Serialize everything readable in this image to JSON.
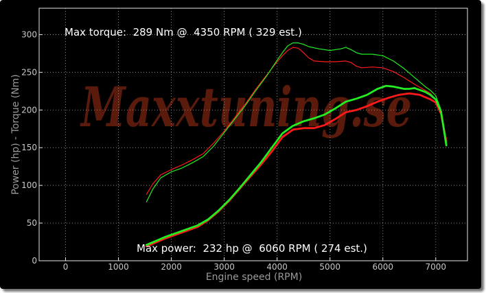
{
  "chart_data": {
    "type": "line",
    "title": "",
    "xlabel": "Engine speed (RPM)",
    "ylabel": "Power (hp) - Torque (Nm)",
    "xlim": [
      -500,
      7600
    ],
    "ylim": [
      0,
      335
    ],
    "x_ticks": [
      "0",
      "1000",
      "2000",
      "3000",
      "4000",
      "5000",
      "6000",
      "7000"
    ],
    "y_ticks": [
      "0",
      "50",
      "100",
      "150",
      "200",
      "250",
      "300"
    ],
    "grid": true,
    "annotations": {
      "max_torque": "Max torque:  289 Nm @  4350 RPM ( 329 est.)",
      "max_power": "Max power:  232 hp @  6060 RPM ( 274 est.)"
    },
    "watermark": "Maxxtuning.se",
    "colors": {
      "red": "#ff1a1a",
      "green": "#22ee22",
      "text": "#ffffff",
      "axis_title": "#9a9a9a"
    },
    "series": [
      {
        "kind": "torque",
        "color": "red",
        "width": 1.2,
        "points": [
          [
            1530,
            88
          ],
          [
            1650,
            102
          ],
          [
            1800,
            114
          ],
          [
            2000,
            121
          ],
          [
            2200,
            127
          ],
          [
            2400,
            134
          ],
          [
            2600,
            142
          ],
          [
            2800,
            156
          ],
          [
            3000,
            172
          ],
          [
            3200,
            190
          ],
          [
            3400,
            208
          ],
          [
            3600,
            228
          ],
          [
            3800,
            246
          ],
          [
            4000,
            264
          ],
          [
            4100,
            272
          ],
          [
            4200,
            279
          ],
          [
            4300,
            283
          ],
          [
            4400,
            282
          ],
          [
            4500,
            276
          ],
          [
            4600,
            269
          ],
          [
            4700,
            265
          ],
          [
            4900,
            264
          ],
          [
            5100,
            264
          ],
          [
            5300,
            265
          ],
          [
            5400,
            263
          ],
          [
            5500,
            258
          ],
          [
            5600,
            256
          ],
          [
            5800,
            257
          ],
          [
            6000,
            256
          ],
          [
            6200,
            251
          ],
          [
            6400,
            243
          ],
          [
            6600,
            234
          ],
          [
            6800,
            226
          ],
          [
            6900,
            222
          ],
          [
            7000,
            214
          ],
          [
            7100,
            195
          ],
          [
            7200,
            158
          ]
        ]
      },
      {
        "kind": "torque",
        "color": "green",
        "width": 1.2,
        "points": [
          [
            1530,
            78
          ],
          [
            1650,
            95
          ],
          [
            1800,
            110
          ],
          [
            2000,
            118
          ],
          [
            2200,
            123
          ],
          [
            2400,
            130
          ],
          [
            2600,
            138
          ],
          [
            2800,
            152
          ],
          [
            3000,
            170
          ],
          [
            3200,
            188
          ],
          [
            3400,
            206
          ],
          [
            3600,
            226
          ],
          [
            3800,
            245
          ],
          [
            4000,
            266
          ],
          [
            4100,
            276
          ],
          [
            4200,
            285
          ],
          [
            4300,
            289
          ],
          [
            4400,
            289
          ],
          [
            4500,
            287
          ],
          [
            4600,
            284
          ],
          [
            4800,
            281
          ],
          [
            5000,
            279
          ],
          [
            5200,
            281
          ],
          [
            5300,
            283
          ],
          [
            5400,
            280
          ],
          [
            5500,
            276
          ],
          [
            5600,
            274
          ],
          [
            5800,
            274
          ],
          [
            6000,
            272
          ],
          [
            6200,
            265
          ],
          [
            6400,
            255
          ],
          [
            6600,
            243
          ],
          [
            6800,
            231
          ],
          [
            6900,
            226
          ],
          [
            7000,
            219
          ],
          [
            7100,
            200
          ],
          [
            7200,
            155
          ]
        ]
      },
      {
        "kind": "power",
        "color": "red",
        "width": 2.8,
        "points": [
          [
            1530,
            19
          ],
          [
            1700,
            24
          ],
          [
            1900,
            30
          ],
          [
            2100,
            35
          ],
          [
            2300,
            40
          ],
          [
            2500,
            45
          ],
          [
            2700,
            54
          ],
          [
            2900,
            66
          ],
          [
            3100,
            80
          ],
          [
            3300,
            96
          ],
          [
            3500,
            112
          ],
          [
            3700,
            128
          ],
          [
            3900,
            145
          ],
          [
            4100,
            164
          ],
          [
            4300,
            174
          ],
          [
            4500,
            176
          ],
          [
            4700,
            176
          ],
          [
            4900,
            180
          ],
          [
            5100,
            188
          ],
          [
            5300,
            197
          ],
          [
            5500,
            200
          ],
          [
            5700,
            205
          ],
          [
            5900,
            211
          ],
          [
            6100,
            216
          ],
          [
            6300,
            220
          ],
          [
            6500,
            222
          ],
          [
            6700,
            220
          ],
          [
            6900,
            214
          ],
          [
            7000,
            210
          ],
          [
            7100,
            195
          ],
          [
            7200,
            158
          ]
        ]
      },
      {
        "kind": "power",
        "color": "green",
        "width": 2.8,
        "points": [
          [
            1530,
            21
          ],
          [
            1700,
            26
          ],
          [
            1900,
            32
          ],
          [
            2100,
            37
          ],
          [
            2300,
            42
          ],
          [
            2500,
            47
          ],
          [
            2700,
            55
          ],
          [
            2900,
            67
          ],
          [
            3100,
            81
          ],
          [
            3300,
            97
          ],
          [
            3500,
            114
          ],
          [
            3700,
            131
          ],
          [
            3900,
            150
          ],
          [
            4100,
            169
          ],
          [
            4300,
            179
          ],
          [
            4500,
            185
          ],
          [
            4700,
            189
          ],
          [
            4900,
            194
          ],
          [
            5100,
            202
          ],
          [
            5300,
            211
          ],
          [
            5500,
            215
          ],
          [
            5700,
            220
          ],
          [
            5900,
            228
          ],
          [
            6060,
            232
          ],
          [
            6200,
            231
          ],
          [
            6400,
            228
          ],
          [
            6500,
            228
          ],
          [
            6600,
            229
          ],
          [
            6800,
            224
          ],
          [
            6900,
            220
          ],
          [
            7000,
            214
          ],
          [
            7100,
            198
          ],
          [
            7200,
            153
          ]
        ]
      }
    ]
  }
}
